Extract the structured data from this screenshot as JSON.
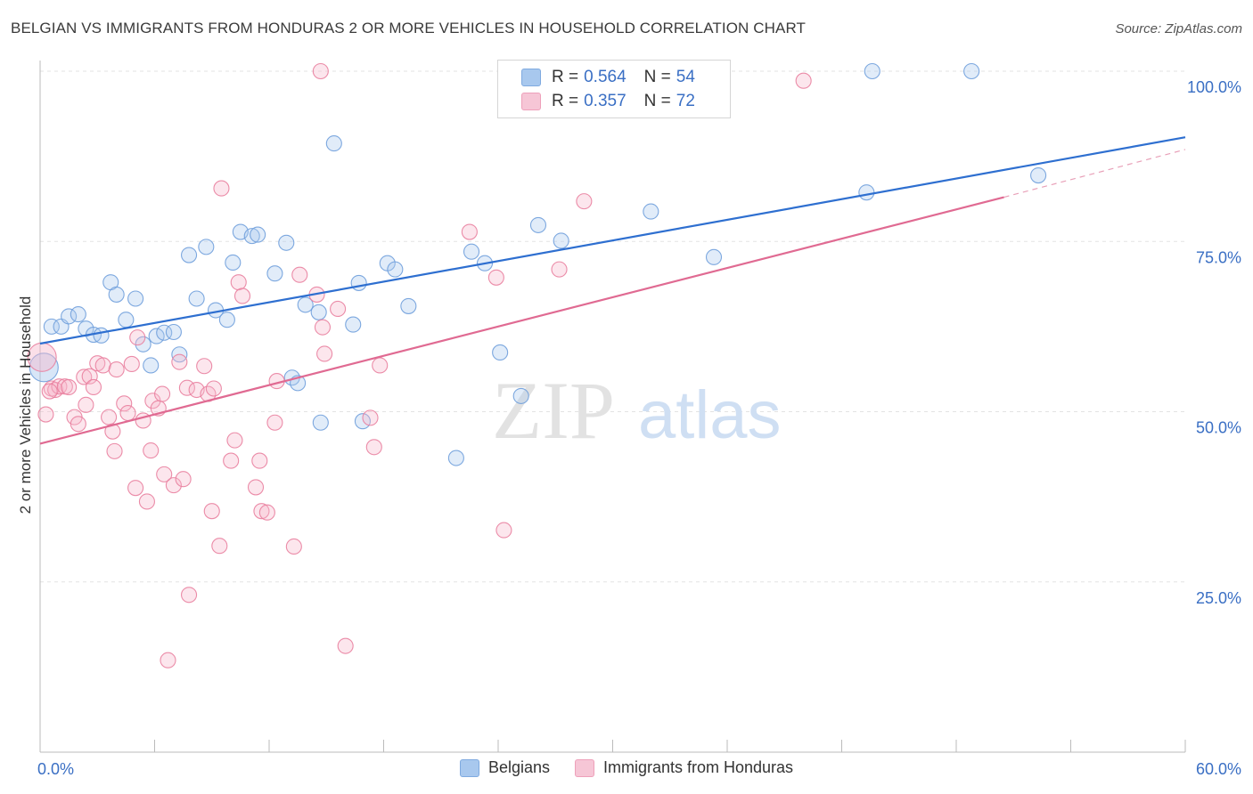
{
  "title": "BELGIAN VS IMMIGRANTS FROM HONDURAS 2 OR MORE VEHICLES IN HOUSEHOLD CORRELATION CHART",
  "source": "Source: ZipAtlas.com",
  "watermark": {
    "zip": "ZIP",
    "atlas": "atlas"
  },
  "legend": {
    "rows": [
      {
        "r_label": "R =",
        "r_value": "0.564",
        "n_label": "N =",
        "n_value": "54",
        "color": "#a8c8ee"
      },
      {
        "r_label": "R =",
        "r_value": "0.357",
        "n_label": "N =",
        "n_value": "72",
        "color": "#f6b8cc"
      }
    ]
  },
  "bottom_legend": [
    {
      "label": "Belgians",
      "color": "#a8c8ee"
    },
    {
      "label": "Immigrants from Honduras",
      "color": "#f6b8cc"
    }
  ],
  "chart_data": {
    "type": "scatter",
    "xlabel": "",
    "ylabel": "2 or more Vehicles in Household",
    "xlim": [
      0,
      60
    ],
    "ylim": [
      0,
      103
    ],
    "x_tick_labels": [
      "0.0%",
      "60.0%"
    ],
    "y_ticks": [
      25,
      50,
      75,
      100
    ],
    "y_tick_labels": [
      "25.0%",
      "50.0%",
      "75.0%",
      "100.0%"
    ],
    "grid": true,
    "series": [
      {
        "name": "Belgians",
        "color": "#6f9fdc",
        "fill": "#a8c8ee",
        "trend": {
          "x0": 0,
          "y0": 60,
          "x1": 60,
          "y1": 90.3
        },
        "points": [
          [
            0.2,
            56.5
          ],
          [
            0.6,
            62.5
          ],
          [
            1.1,
            62.5
          ],
          [
            1.5,
            64
          ],
          [
            2.0,
            64.3
          ],
          [
            2.4,
            62.2
          ],
          [
            2.8,
            61.3
          ],
          [
            3.2,
            61.2
          ],
          [
            3.7,
            69
          ],
          [
            4.0,
            67.2
          ],
          [
            4.5,
            63.5
          ],
          [
            5.0,
            66.6
          ],
          [
            5.4,
            59.9
          ],
          [
            5.8,
            56.8
          ],
          [
            6.1,
            61.1
          ],
          [
            6.5,
            61.6
          ],
          [
            7.0,
            61.7
          ],
          [
            7.3,
            58.4
          ],
          [
            7.8,
            73
          ],
          [
            8.2,
            66.6
          ],
          [
            8.7,
            74.2
          ],
          [
            9.2,
            64.9
          ],
          [
            9.8,
            63.5
          ],
          [
            10.1,
            71.9
          ],
          [
            10.5,
            76.4
          ],
          [
            11.1,
            75.8
          ],
          [
            11.4,
            76
          ],
          [
            12.3,
            70.3
          ],
          [
            12.9,
            74.8
          ],
          [
            13.2,
            55
          ],
          [
            13.5,
            54.2
          ],
          [
            13.9,
            65.7
          ],
          [
            14.6,
            64.6
          ],
          [
            14.7,
            48.4
          ],
          [
            15.4,
            89.4
          ],
          [
            16.4,
            62.8
          ],
          [
            16.7,
            68.9
          ],
          [
            16.9,
            48.6
          ],
          [
            18.2,
            71.8
          ],
          [
            18.6,
            70.9
          ],
          [
            19.3,
            65.5
          ],
          [
            21.8,
            43.2
          ],
          [
            22.6,
            73.5
          ],
          [
            23.3,
            71.8
          ],
          [
            24.1,
            58.7
          ],
          [
            25.2,
            52.3
          ],
          [
            26.1,
            77.4
          ],
          [
            27.3,
            75.1
          ],
          [
            32.0,
            79.4
          ],
          [
            35.3,
            72.7
          ],
          [
            43.3,
            82.2
          ],
          [
            43.6,
            100
          ],
          [
            48.8,
            100
          ],
          [
            52.3,
            84.7
          ]
        ]
      },
      {
        "name": "Immigrants from Honduras",
        "color": "#e9809e",
        "fill": "#f6b8cc",
        "trend": {
          "x0": 0,
          "y0": 45.3,
          "x1": 50.5,
          "y1": 81.5
        },
        "trend_dashed": {
          "x0": 50.5,
          "y0": 81.5,
          "x1": 60,
          "y1": 88.5
        },
        "points": [
          [
            0.1,
            58
          ],
          [
            0.3,
            49.6
          ],
          [
            0.6,
            53.4
          ],
          [
            0.8,
            53.2
          ],
          [
            1.0,
            53.7
          ],
          [
            1.3,
            53.7
          ],
          [
            1.5,
            53.6
          ],
          [
            1.8,
            49.2
          ],
          [
            2.0,
            48.2
          ],
          [
            2.3,
            55.1
          ],
          [
            2.4,
            51
          ],
          [
            2.6,
            55.2
          ],
          [
            2.8,
            53.6
          ],
          [
            3.0,
            57.1
          ],
          [
            3.3,
            56.8
          ],
          [
            3.6,
            49.2
          ],
          [
            3.8,
            47.1
          ],
          [
            3.9,
            44.2
          ],
          [
            4.0,
            56.2
          ],
          [
            4.4,
            51.2
          ],
          [
            4.6,
            49.8
          ],
          [
            4.8,
            57
          ],
          [
            5.0,
            38.8
          ],
          [
            5.1,
            60.9
          ],
          [
            5.4,
            48.7
          ],
          [
            5.6,
            36.8
          ],
          [
            5.8,
            44.3
          ],
          [
            5.9,
            51.6
          ],
          [
            6.2,
            50.5
          ],
          [
            6.4,
            52.6
          ],
          [
            6.5,
            40.8
          ],
          [
            6.7,
            13.5
          ],
          [
            7.0,
            39.2
          ],
          [
            7.3,
            57.3
          ],
          [
            7.5,
            40.1
          ],
          [
            7.7,
            53.5
          ],
          [
            7.8,
            23.1
          ],
          [
            8.2,
            53.2
          ],
          [
            8.6,
            56.7
          ],
          [
            8.8,
            52.6
          ],
          [
            9.0,
            35.4
          ],
          [
            9.1,
            53.4
          ],
          [
            9.4,
            30.3
          ],
          [
            9.5,
            82.8
          ],
          [
            10.0,
            42.8
          ],
          [
            10.2,
            45.8
          ],
          [
            10.4,
            69
          ],
          [
            10.6,
            67
          ],
          [
            11.3,
            38.9
          ],
          [
            11.5,
            42.8
          ],
          [
            11.6,
            35.4
          ],
          [
            11.9,
            35.2
          ],
          [
            12.3,
            48.4
          ],
          [
            12.4,
            54.5
          ],
          [
            13.3,
            30.2
          ],
          [
            13.6,
            70.1
          ],
          [
            14.5,
            67.2
          ],
          [
            14.7,
            100
          ],
          [
            14.8,
            62.4
          ],
          [
            14.9,
            58.5
          ],
          [
            15.6,
            65.1
          ],
          [
            16.0,
            15.6
          ],
          [
            17.3,
            49.1
          ],
          [
            17.5,
            44.8
          ],
          [
            17.8,
            56.8
          ],
          [
            22.5,
            76.4
          ],
          [
            23.9,
            69.7
          ],
          [
            24.3,
            32.6
          ],
          [
            27.2,
            70.9
          ],
          [
            28.5,
            80.9
          ],
          [
            40.0,
            98.6
          ],
          [
            0.5,
            53
          ]
        ]
      }
    ]
  }
}
